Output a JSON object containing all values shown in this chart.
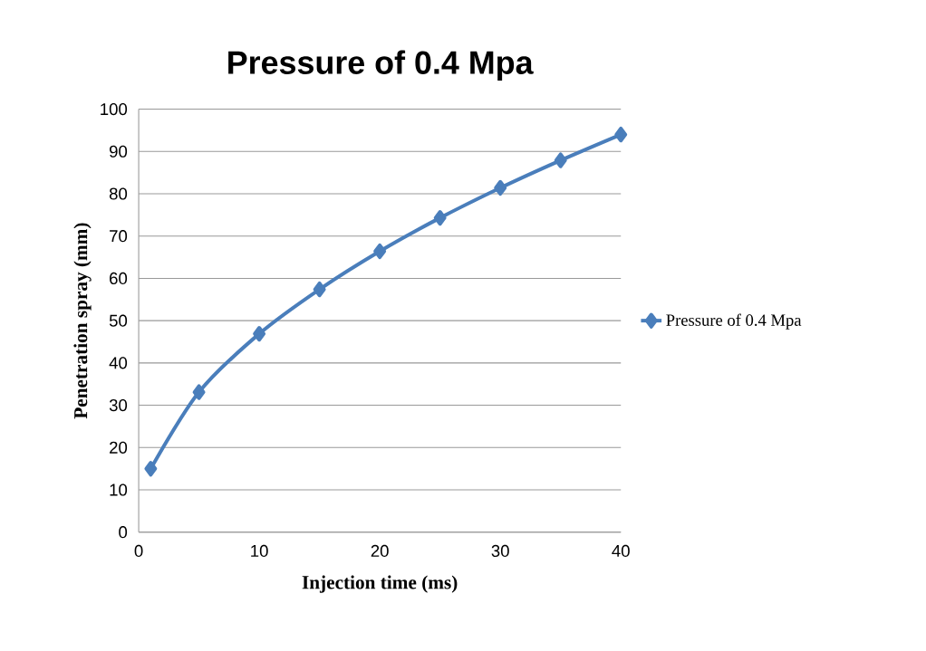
{
  "chart_data": {
    "type": "line",
    "title": "Pressure of 0.4 Mpa",
    "xlabel": "Injection time (ms)",
    "ylabel": "Penetration spray (mm)",
    "x": [
      1,
      5,
      10,
      15,
      20,
      25,
      30,
      35,
      40
    ],
    "series": [
      {
        "name": "Pressure of 0.4 Mpa",
        "color": "#4a7ebb",
        "values": [
          15,
          33.1,
          46.9,
          57.4,
          66.4,
          74.3,
          81.4,
          87.9,
          94.0
        ]
      }
    ],
    "xlim": [
      0,
      40
    ],
    "xticks": [
      0,
      10,
      20,
      30,
      40
    ],
    "ylim": [
      0,
      100
    ],
    "yticks": [
      0,
      10,
      20,
      30,
      40,
      50,
      60,
      70,
      80,
      90,
      100
    ],
    "grid": "y",
    "legend": "right",
    "marker": "diamond",
    "line_style": "solid"
  }
}
